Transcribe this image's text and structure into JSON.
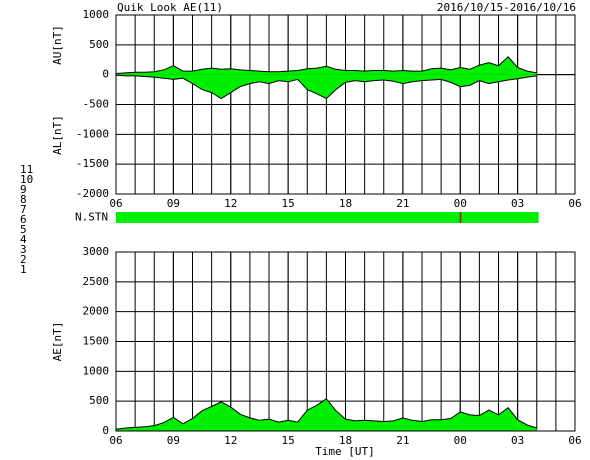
{
  "title": "Quik Look AE(11)",
  "date_range": "2016/10/15-2016/10/16",
  "x_label": "Time [UT]",
  "station_scale": [
    {
      "label": "11",
      "color": "#30d8d8"
    },
    {
      "label": "10",
      "color": "#d820d8"
    },
    {
      "label": "9",
      "color": "#2828c8"
    },
    {
      "label": "8",
      "color": "#e8c800"
    },
    {
      "label": "7",
      "color": "#c8e070"
    },
    {
      "label": "6",
      "color": "#e00000"
    },
    {
      "label": "5",
      "color": "#c8c8c8"
    },
    {
      "label": "4",
      "color": "#909090"
    },
    {
      "label": "3",
      "color": "#30a8a8"
    },
    {
      "label": "2",
      "color": "#8020a0"
    },
    {
      "label": "1",
      "color": "#2020c0"
    }
  ],
  "chart_data": [
    {
      "type": "area",
      "y_labels": [
        "AU[nT]",
        "AL[nT]"
      ],
      "fill": "#00ee00",
      "line_color": "#000000",
      "x": [
        0,
        0.5,
        1,
        1.5,
        2,
        2.5,
        3,
        3.5,
        4,
        4.5,
        5,
        5.5,
        6,
        6.5,
        7,
        7.5,
        8,
        8.5,
        9,
        9.5,
        10,
        10.5,
        11,
        11.5,
        12,
        12.5,
        13,
        13.5,
        14,
        14.5,
        15,
        15.5,
        16,
        16.5,
        17,
        17.5,
        18,
        18.5,
        19,
        19.5,
        20,
        20.5,
        21,
        21.5,
        22
      ],
      "series": [
        {
          "values": [
            20,
            30,
            40,
            40,
            50,
            80,
            150,
            60,
            60,
            90,
            110,
            90,
            100,
            80,
            70,
            60,
            50,
            50,
            60,
            70,
            100,
            110,
            140,
            90,
            70,
            70,
            60,
            70,
            70,
            60,
            70,
            60,
            60,
            100,
            110,
            80,
            120,
            90,
            160,
            200,
            150,
            300,
            120,
            60,
            30
          ]
        },
        {
          "values": [
            -10,
            -20,
            -20,
            -30,
            -40,
            -60,
            -80,
            -60,
            -150,
            -250,
            -300,
            -400,
            -300,
            -200,
            -150,
            -120,
            -150,
            -100,
            -120,
            -80,
            -250,
            -320,
            -400,
            -250,
            -130,
            -100,
            -120,
            -100,
            -90,
            -110,
            -150,
            -120,
            -100,
            -90,
            -80,
            -130,
            -200,
            -180,
            -100,
            -150,
            -120,
            -90,
            -70,
            -40,
            -20
          ]
        }
      ],
      "xlim": [
        0,
        24
      ],
      "ylim": [
        -2000,
        1000
      ],
      "x_grid_every": 1,
      "xticks": [
        {
          "value": 0,
          "label": "06"
        },
        {
          "value": 3,
          "label": "09"
        },
        {
          "value": 6,
          "label": "12"
        },
        {
          "value": 9,
          "label": "15"
        },
        {
          "value": 12,
          "label": "18"
        },
        {
          "value": 15,
          "label": "21"
        },
        {
          "value": 18,
          "label": "00"
        },
        {
          "value": 21,
          "label": "03"
        },
        {
          "value": 24,
          "label": "06"
        }
      ],
      "yticks": [
        -2000,
        -1500,
        -1000,
        -500,
        0,
        500,
        1000
      ]
    },
    {
      "type": "strip",
      "label": "N.STN",
      "color": "#00ee00",
      "span": [
        0,
        22.1
      ],
      "marker": {
        "x": 18,
        "color": "#d00000"
      },
      "xlim": [
        0,
        24
      ]
    },
    {
      "type": "area",
      "y_labels": [
        "AE[nT]"
      ],
      "fill": "#00ee00",
      "line_color": "#000000",
      "x": [
        0,
        0.5,
        1,
        1.5,
        2,
        2.5,
        3,
        3.5,
        4,
        4.5,
        5,
        5.5,
        6,
        6.5,
        7,
        7.5,
        8,
        8.5,
        9,
        9.5,
        10,
        10.5,
        11,
        11.5,
        12,
        12.5,
        13,
        13.5,
        14,
        14.5,
        15,
        15.5,
        16,
        16.5,
        17,
        17.5,
        18,
        18.5,
        19,
        19.5,
        20,
        20.5,
        21,
        21.5,
        22
      ],
      "series": [
        {
          "values": [
            30,
            50,
            60,
            70,
            90,
            140,
            230,
            120,
            210,
            340,
            410,
            490,
            400,
            280,
            220,
            180,
            200,
            150,
            180,
            150,
            350,
            430,
            540,
            340,
            200,
            170,
            180,
            170,
            160,
            170,
            220,
            180,
            160,
            190,
            190,
            210,
            320,
            270,
            260,
            350,
            270,
            390,
            190,
            100,
            50
          ]
        }
      ],
      "xlim": [
        0,
        24
      ],
      "ylim": [
        0,
        3000
      ],
      "x_grid_every": 1,
      "xticks": [
        {
          "value": 0,
          "label": "06"
        },
        {
          "value": 3,
          "label": "09"
        },
        {
          "value": 6,
          "label": "12"
        },
        {
          "value": 9,
          "label": "15"
        },
        {
          "value": 12,
          "label": "18"
        },
        {
          "value": 15,
          "label": "21"
        },
        {
          "value": 18,
          "label": "00"
        },
        {
          "value": 21,
          "label": "03"
        },
        {
          "value": 24,
          "label": "06"
        }
      ],
      "yticks": [
        0,
        500,
        1000,
        1500,
        2000,
        2500,
        3000
      ]
    }
  ]
}
